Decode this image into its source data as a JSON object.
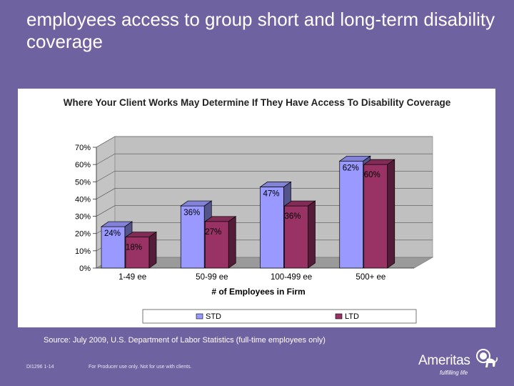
{
  "slide": {
    "title": "employees access to group short and long-term disability coverage",
    "source": "Source: July 2009, U.S. Department of Labor Statistics (full-time employees only)",
    "footer_code": "DI1296 1-14",
    "footer_note": "For Producer use only. Not for use with clients.",
    "logo_name": "Ameritas",
    "logo_tagline": "fulfilling life",
    "logo_icon": "lion-icon"
  },
  "chart_data": {
    "type": "bar",
    "title": "Where Your Client Works May Determine If They Have Access To Disability Coverage",
    "xlabel": "# of Employees in Firm",
    "ylabel": "",
    "categories": [
      "1-49 ee",
      "50-99 ee",
      "100-499 ee",
      "500+ ee"
    ],
    "series": [
      {
        "name": "STD",
        "values": [
          24,
          36,
          47,
          62
        ],
        "labels": [
          "24%",
          "36%",
          "47%",
          "62%"
        ],
        "color": "#9999ff"
      },
      {
        "name": "LTD",
        "values": [
          18,
          27,
          36,
          60
        ],
        "labels": [
          "18%",
          "27%",
          "36%",
          "60%"
        ],
        "color": "#993366"
      }
    ],
    "ylim": [
      0,
      70
    ],
    "yticks": [
      "0%",
      "10%",
      "20%",
      "30%",
      "40%",
      "50%",
      "60%",
      "70%"
    ],
    "grid": true,
    "three_d": true,
    "legend_position": "bottom"
  }
}
